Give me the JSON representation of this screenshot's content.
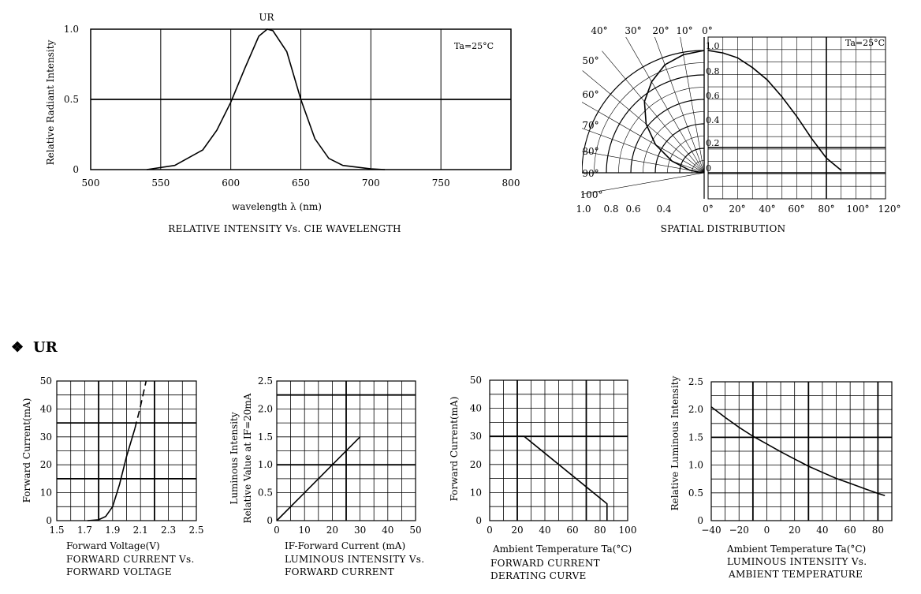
{
  "section": {
    "bullet": "❖",
    "title": "UR"
  },
  "chart_data": [
    {
      "id": "spectrum",
      "type": "line",
      "curve_label": "UR",
      "temp_label": "Ta=25°C",
      "xlabel": "wavelength λ (nm)",
      "ylabel": "Relative Radiant Intensity",
      "caption": "RELATIVE INTENSITY Vs. CIE WAVELENGTH",
      "xlim": [
        500,
        800
      ],
      "ylim": [
        0,
        1.0
      ],
      "xticks": [
        "500",
        "550",
        "600",
        "650",
        "700",
        "750",
        "800"
      ],
      "yticks": [
        "0",
        "0.5",
        "1.0"
      ],
      "grid": true,
      "series": [
        {
          "x": [
            540,
            560,
            580,
            590,
            600,
            610,
            620,
            626,
            630,
            640,
            650,
            660,
            670,
            680,
            700,
            710
          ],
          "y": [
            0,
            0.03,
            0.14,
            0.28,
            0.48,
            0.72,
            0.95,
            1.0,
            0.99,
            0.84,
            0.5,
            0.22,
            0.08,
            0.03,
            0.005,
            0
          ]
        }
      ]
    },
    {
      "id": "spatial",
      "type": "polar",
      "temp_label": "Ta=25°C",
      "caption": "SPATIAL DISTRIBUTION",
      "angle_labels_top": [
        "40°",
        "30°",
        "20°",
        "10°",
        "0°"
      ],
      "angle_labels_left": [
        "50°",
        "60°",
        "70°",
        "80°",
        "90°",
        "100°"
      ],
      "radial_labels_bottom": [
        "1.0",
        "0.8",
        "0.6",
        "0.4"
      ],
      "inner_labels": [
        "1.0",
        "0.8",
        "0.6",
        "0.4",
        "0.2",
        "0"
      ],
      "x_labels": [
        "0°",
        "20°",
        "40°",
        "60°",
        "80°",
        "100°",
        "120°"
      ],
      "series": [
        {
          "angle_deg": [
            0,
            10,
            20,
            30,
            40,
            50,
            60,
            70,
            80,
            90
          ],
          "intensity": [
            1.0,
            0.98,
            0.94,
            0.86,
            0.76,
            0.62,
            0.46,
            0.28,
            0.12,
            0.02
          ]
        }
      ]
    },
    {
      "id": "iv",
      "type": "line",
      "xlabel": "Forward Voltage(V)",
      "ylabel": "Forward Current(mA)",
      "caption": [
        "FORWARD CURRENT Vs.",
        "FORWARD VOLTAGE"
      ],
      "xlim": [
        1.5,
        2.5
      ],
      "ylim": [
        0,
        50
      ],
      "xticks": [
        "1.5",
        "1.7",
        "1.9",
        "2.1",
        "2.3",
        "2.5"
      ],
      "yticks": [
        "0",
        "10",
        "20",
        "30",
        "40",
        "50"
      ],
      "series": [
        {
          "x": [
            1.72,
            1.8,
            1.85,
            1.9,
            1.95,
            2.0,
            2.06
          ],
          "y": [
            0,
            0.3,
            1.5,
            5,
            13,
            23,
            33
          ],
          "style": "solid"
        },
        {
          "x": [
            2.06,
            2.1,
            2.14
          ],
          "y": [
            33,
            41,
            50
          ],
          "style": "dashed"
        }
      ]
    },
    {
      "id": "lum_current",
      "type": "line",
      "xlabel": "IF-Forward Current (mA)",
      "ylabel": [
        "Luminous Intensity",
        "Relative Value at IF=20mA"
      ],
      "caption": [
        "LUMINOUS INTENSITY Vs.",
        "FORWARD CURRENT"
      ],
      "xlim": [
        0,
        50
      ],
      "ylim": [
        0,
        2.5
      ],
      "xticks": [
        "0",
        "10",
        "20",
        "30",
        "40",
        "50"
      ],
      "yticks": [
        "0",
        "0.5",
        "1.0",
        "1.5",
        "2.0",
        "2.5"
      ],
      "series": [
        {
          "x": [
            0,
            30
          ],
          "y": [
            0,
            1.5
          ]
        }
      ]
    },
    {
      "id": "derating",
      "type": "line",
      "xlabel": "Ambient Temperature Ta(°C)",
      "ylabel": "Forward Current(mA)",
      "caption": [
        "FORWARD CURRENT",
        "DERATING CURVE"
      ],
      "xlim": [
        0,
        100
      ],
      "ylim": [
        0,
        50
      ],
      "xticks": [
        "0",
        "20",
        "40",
        "60",
        "80",
        "100"
      ],
      "yticks": [
        "0",
        "10",
        "20",
        "30",
        "40",
        "50"
      ],
      "series": [
        {
          "x": [
            0,
            25,
            85,
            85
          ],
          "y": [
            30,
            30,
            6,
            0
          ]
        }
      ]
    },
    {
      "id": "lum_temp",
      "type": "line",
      "xlabel": "Ambient Temperature Ta(°C)",
      "ylabel": "Relative Luminous Intensity",
      "caption": [
        "LUMINOUS INTENSITY Vs.",
        "AMBIENT TEMPERATURE"
      ],
      "xlim": [
        -40,
        90
      ],
      "ylim": [
        0,
        2.5
      ],
      "xticks": [
        "−40",
        "−20",
        "0",
        "20",
        "40",
        "60",
        "80"
      ],
      "yticks": [
        "0",
        "0.5",
        "1.0",
        "1.5",
        "2.0",
        "2.5"
      ],
      "series": [
        {
          "x": [
            -40,
            -30,
            -20,
            -10,
            0,
            10,
            20,
            30,
            40,
            50,
            60,
            70,
            80,
            85
          ],
          "y": [
            2.05,
            1.86,
            1.68,
            1.52,
            1.38,
            1.24,
            1.11,
            0.98,
            0.87,
            0.76,
            0.67,
            0.58,
            0.49,
            0.45
          ]
        }
      ]
    }
  ]
}
